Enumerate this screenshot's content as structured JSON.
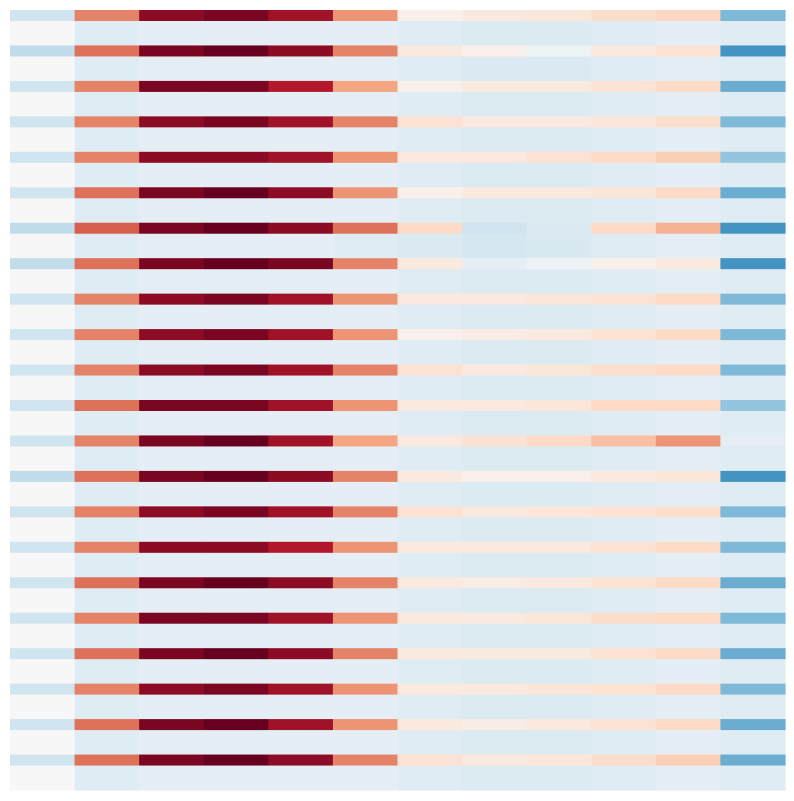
{
  "chart_data": {
    "type": "heatmap",
    "colormap": [
      "#053061",
      "#2166ac",
      "#4393c3",
      "#92c5de",
      "#d1e5f0",
      "#f7f7f7",
      "#fddbc7",
      "#f4a582",
      "#d6604d",
      "#b2182b",
      "#67001f"
    ],
    "vlim": [
      -1,
      1
    ],
    "values": [
      [
        -0.2,
        0.5,
        0.9,
        0.95,
        0.85,
        0.45,
        0.05,
        0.1,
        0.12,
        0.18,
        0.22,
        -0.45
      ],
      [
        0.0,
        -0.12,
        -0.1,
        -0.1,
        -0.1,
        -0.1,
        -0.12,
        -0.14,
        -0.14,
        -0.12,
        -0.1,
        -0.12
      ],
      [
        -0.25,
        0.55,
        0.95,
        1.0,
        0.9,
        0.5,
        0.1,
        0.05,
        -0.05,
        0.1,
        0.15,
        -0.6
      ],
      [
        0.0,
        -0.12,
        -0.1,
        -0.1,
        -0.1,
        -0.1,
        -0.12,
        -0.15,
        -0.15,
        -0.12,
        -0.1,
        -0.12
      ],
      [
        -0.2,
        0.5,
        0.95,
        0.95,
        0.8,
        0.4,
        0.05,
        0.1,
        0.1,
        0.15,
        0.2,
        -0.5
      ],
      [
        0.0,
        -0.12,
        -0.1,
        -0.1,
        -0.1,
        -0.1,
        -0.12,
        -0.14,
        -0.14,
        -0.12,
        -0.1,
        -0.12
      ],
      [
        -0.2,
        0.5,
        0.9,
        0.95,
        0.85,
        0.5,
        0.15,
        0.1,
        0.1,
        0.12,
        0.18,
        -0.45
      ],
      [
        0.0,
        -0.12,
        -0.1,
        -0.1,
        -0.1,
        -0.1,
        -0.12,
        -0.14,
        -0.14,
        -0.12,
        -0.1,
        -0.12
      ],
      [
        -0.2,
        0.5,
        0.9,
        0.9,
        0.85,
        0.45,
        0.1,
        0.1,
        0.15,
        0.2,
        0.25,
        -0.4
      ],
      [
        0.0,
        -0.12,
        -0.1,
        -0.1,
        -0.1,
        -0.1,
        -0.12,
        -0.14,
        -0.14,
        -0.12,
        -0.1,
        -0.12
      ],
      [
        -0.2,
        0.55,
        0.95,
        1.0,
        0.9,
        0.45,
        0.05,
        0.1,
        0.1,
        0.12,
        0.2,
        -0.5
      ],
      [
        0.0,
        -0.12,
        -0.1,
        -0.1,
        -0.1,
        -0.1,
        -0.12,
        -0.14,
        -0.14,
        -0.12,
        -0.1,
        -0.12
      ],
      [
        -0.25,
        0.6,
        0.95,
        1.0,
        0.9,
        0.55,
        0.2,
        -0.2,
        -0.15,
        0.2,
        0.35,
        -0.6
      ],
      [
        0.0,
        -0.12,
        -0.1,
        -0.1,
        -0.1,
        -0.12,
        -0.15,
        -0.18,
        -0.16,
        -0.12,
        -0.1,
        -0.12
      ],
      [
        -0.25,
        0.55,
        0.95,
        1.0,
        0.95,
        0.5,
        0.1,
        -0.1,
        -0.05,
        0.05,
        0.1,
        -0.6
      ],
      [
        0.0,
        -0.12,
        -0.1,
        -0.1,
        -0.1,
        -0.1,
        -0.12,
        -0.14,
        -0.14,
        -0.12,
        -0.1,
        -0.12
      ],
      [
        -0.2,
        0.5,
        0.9,
        0.95,
        0.85,
        0.45,
        0.1,
        0.1,
        0.12,
        0.15,
        0.2,
        -0.45
      ],
      [
        0.0,
        -0.12,
        -0.1,
        -0.1,
        -0.1,
        -0.1,
        -0.12,
        -0.14,
        -0.14,
        -0.12,
        -0.1,
        -0.12
      ],
      [
        -0.2,
        0.5,
        0.9,
        0.95,
        0.85,
        0.45,
        0.05,
        0.08,
        0.1,
        0.15,
        0.2,
        -0.45
      ],
      [
        0.0,
        -0.12,
        -0.1,
        -0.1,
        -0.1,
        -0.1,
        -0.12,
        -0.14,
        -0.14,
        -0.12,
        -0.1,
        -0.12
      ],
      [
        -0.2,
        0.5,
        0.9,
        0.95,
        0.85,
        0.5,
        0.15,
        0.1,
        0.12,
        0.18,
        0.2,
        -0.45
      ],
      [
        0.0,
        -0.12,
        -0.1,
        -0.1,
        -0.1,
        -0.1,
        -0.12,
        -0.14,
        -0.14,
        -0.12,
        -0.1,
        -0.12
      ],
      [
        -0.2,
        0.55,
        0.95,
        0.95,
        0.85,
        0.45,
        0.1,
        0.1,
        0.12,
        0.2,
        0.2,
        -0.4
      ],
      [
        0.0,
        -0.12,
        -0.1,
        -0.1,
        -0.1,
        -0.1,
        -0.12,
        -0.14,
        -0.14,
        -0.12,
        -0.1,
        -0.12
      ],
      [
        -0.2,
        0.5,
        0.95,
        1.0,
        0.85,
        0.4,
        0.1,
        0.15,
        0.2,
        0.3,
        0.45,
        -0.1
      ],
      [
        0.0,
        -0.12,
        -0.1,
        -0.1,
        -0.1,
        -0.1,
        -0.12,
        -0.14,
        -0.14,
        -0.12,
        -0.1,
        -0.12
      ],
      [
        -0.25,
        0.55,
        0.95,
        1.0,
        0.9,
        0.5,
        0.1,
        0.05,
        0.05,
        0.1,
        0.12,
        -0.6
      ],
      [
        0.0,
        -0.12,
        -0.1,
        -0.1,
        -0.1,
        -0.1,
        -0.12,
        -0.14,
        -0.14,
        -0.12,
        -0.1,
        -0.12
      ],
      [
        -0.2,
        0.5,
        0.9,
        0.95,
        0.85,
        0.5,
        0.15,
        0.1,
        0.12,
        0.15,
        0.18,
        -0.45
      ],
      [
        0.0,
        -0.12,
        -0.1,
        -0.1,
        -0.1,
        -0.1,
        -0.12,
        -0.14,
        -0.14,
        -0.12,
        -0.1,
        -0.12
      ],
      [
        -0.2,
        0.5,
        0.9,
        0.9,
        0.8,
        0.45,
        0.1,
        0.1,
        0.1,
        0.15,
        0.2,
        -0.45
      ],
      [
        0.0,
        -0.12,
        -0.1,
        -0.1,
        -0.1,
        -0.1,
        -0.12,
        -0.14,
        -0.14,
        -0.12,
        -0.1,
        -0.12
      ],
      [
        -0.2,
        0.55,
        0.95,
        1.0,
        0.9,
        0.5,
        0.1,
        0.08,
        0.1,
        0.15,
        0.2,
        -0.5
      ],
      [
        0.0,
        -0.12,
        -0.1,
        -0.1,
        -0.1,
        -0.1,
        -0.12,
        -0.14,
        -0.14,
        -0.12,
        -0.1,
        -0.12
      ],
      [
        -0.2,
        0.5,
        0.95,
        0.95,
        0.85,
        0.45,
        0.1,
        0.1,
        0.12,
        0.18,
        0.2,
        -0.45
      ],
      [
        0.0,
        -0.12,
        -0.1,
        -0.1,
        -0.1,
        -0.1,
        -0.12,
        -0.14,
        -0.14,
        -0.12,
        -0.1,
        -0.12
      ],
      [
        -0.2,
        0.55,
        0.95,
        1.0,
        0.9,
        0.5,
        0.1,
        0.1,
        0.1,
        0.15,
        0.2,
        -0.5
      ],
      [
        0.0,
        -0.12,
        -0.1,
        -0.1,
        -0.1,
        -0.1,
        -0.12,
        -0.14,
        -0.14,
        -0.12,
        -0.1,
        -0.12
      ],
      [
        -0.2,
        0.5,
        0.9,
        0.95,
        0.85,
        0.45,
        0.1,
        0.1,
        0.12,
        0.15,
        0.2,
        -0.45
      ],
      [
        0.0,
        -0.12,
        -0.1,
        -0.1,
        -0.1,
        -0.1,
        -0.12,
        -0.14,
        -0.14,
        -0.12,
        -0.1,
        -0.12
      ],
      [
        -0.2,
        0.55,
        0.95,
        1.0,
        0.85,
        0.45,
        0.1,
        0.08,
        0.1,
        0.15,
        0.2,
        -0.5
      ],
      [
        0.0,
        -0.12,
        -0.1,
        -0.1,
        -0.1,
        -0.1,
        -0.12,
        -0.14,
        -0.14,
        -0.12,
        -0.1,
        -0.12
      ],
      [
        -0.2,
        0.55,
        0.95,
        1.0,
        0.9,
        0.5,
        0.15,
        0.1,
        0.12,
        0.18,
        0.25,
        -0.5
      ],
      [
        0.0,
        -0.12,
        -0.1,
        -0.1,
        -0.1,
        -0.1,
        -0.12,
        -0.14,
        -0.14,
        -0.12,
        -0.1,
        -0.12
      ]
    ]
  }
}
